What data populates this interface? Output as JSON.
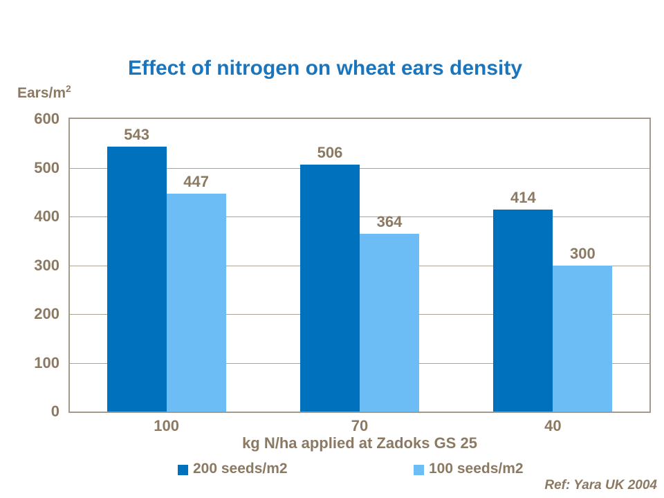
{
  "slide": {
    "title": "Effect of nitrogen on wheat ears density",
    "reference": "Ref: Yara UK 2004"
  },
  "colors": {
    "title": "#1B75BC",
    "text": "#8B7962",
    "plot_border": "#A39A8B",
    "gridline": "#ACA294",
    "series1": "#0072BD",
    "series2": "#6CBDF6",
    "background": "#FFFFFF"
  },
  "chart_data": {
    "type": "bar",
    "title": "Effect of nitrogen on wheat ears density",
    "categories": [
      "100",
      "70",
      "40"
    ],
    "series": [
      {
        "name": "200 seeds/m2",
        "values": [
          543,
          506,
          414
        ],
        "color": "#0072BD"
      },
      {
        "name": "100 seeds/m2",
        "values": [
          447,
          364,
          300
        ],
        "color": "#6CBDF6"
      }
    ],
    "xlabel": "kg N/ha applied at Zadoks GS 25",
    "ylabel": "Ears/m2",
    "ylabel_base": "Ears/m",
    "ylabel_sup": "2",
    "ylim": [
      0,
      600
    ],
    "ytick_step": 100,
    "grid": true,
    "legend_position": "bottom",
    "bar_value_labels": true
  }
}
